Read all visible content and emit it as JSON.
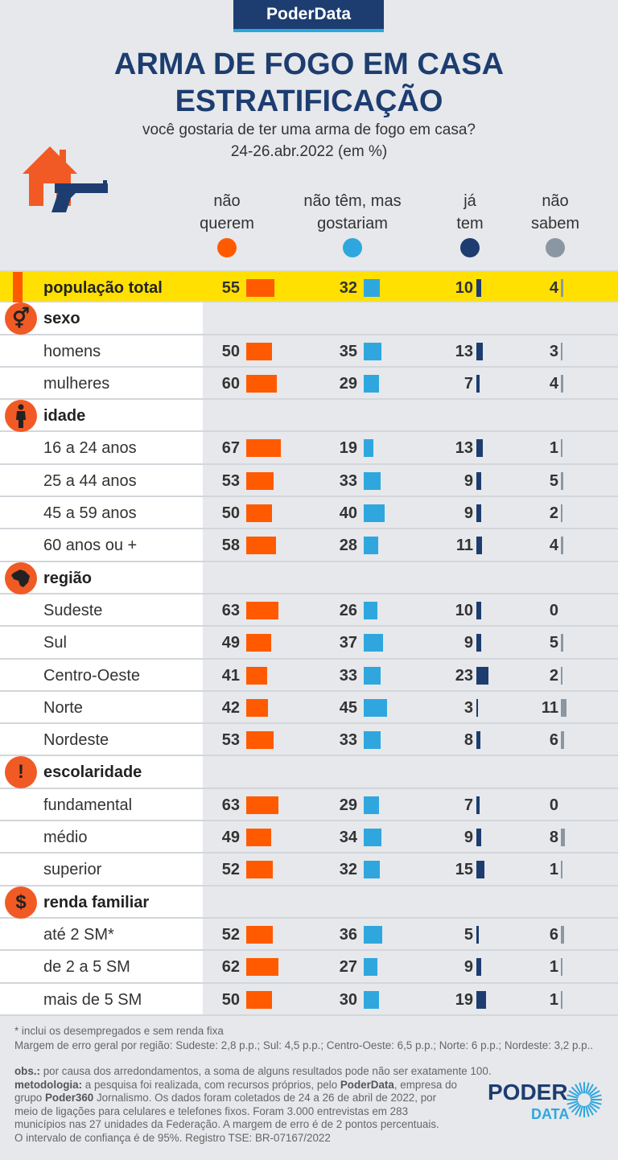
{
  "brand": "PoderData",
  "title_line1": "ARMA DE FOGO EM CASA",
  "title_line2": "ESTRATIFICAÇÃO",
  "subtitle_line1": "você gostaria de ter uma arma de fogo em casa?",
  "subtitle_line2": "24-26.abr.2022 (em %)",
  "colors": {
    "nao_querem": "#ff5a00",
    "gostariam": "#2fa7de",
    "ja_tem": "#1d3d70",
    "nao_sabem": "#8a97a3",
    "highlight": "#ffe000",
    "icon_bg": "#f15a24"
  },
  "chart_data": {
    "type": "bar",
    "series": [
      {
        "key": "nao_querem",
        "label_line1": "não",
        "label_line2": "querem"
      },
      {
        "key": "gostariam",
        "label_line1": "não têm, mas",
        "label_line2": "gostariam"
      },
      {
        "key": "ja_tem",
        "label_line1": "já",
        "label_line2": "tem"
      },
      {
        "key": "nao_sabem",
        "label_line1": "não",
        "label_line2": "sabem"
      }
    ],
    "rows": [
      {
        "kind": "total",
        "label": "população total",
        "values": [
          55,
          32,
          10,
          4
        ]
      },
      {
        "kind": "header",
        "label": "sexo",
        "icon": "gender-icon"
      },
      {
        "kind": "data",
        "label": "homens",
        "values": [
          50,
          35,
          13,
          3
        ]
      },
      {
        "kind": "data",
        "label": "mulheres",
        "values": [
          60,
          29,
          7,
          4
        ]
      },
      {
        "kind": "header",
        "label": "idade",
        "icon": "person-icon"
      },
      {
        "kind": "data",
        "label": "16 a 24 anos",
        "values": [
          67,
          19,
          13,
          1
        ]
      },
      {
        "kind": "data",
        "label": "25 a 44 anos",
        "values": [
          53,
          33,
          9,
          5
        ]
      },
      {
        "kind": "data",
        "label": "45 a 59 anos",
        "values": [
          50,
          40,
          9,
          2
        ]
      },
      {
        "kind": "data",
        "label": "60 anos ou +",
        "values": [
          58,
          28,
          11,
          4
        ]
      },
      {
        "kind": "header",
        "label": "região",
        "icon": "brazil-map-icon"
      },
      {
        "kind": "data",
        "label": "Sudeste",
        "values": [
          63,
          26,
          10,
          0
        ]
      },
      {
        "kind": "data",
        "label": "Sul",
        "values": [
          49,
          37,
          9,
          5
        ]
      },
      {
        "kind": "data",
        "label": "Centro-Oeste",
        "values": [
          41,
          33,
          23,
          2
        ]
      },
      {
        "kind": "data",
        "label": "Norte",
        "values": [
          42,
          45,
          3,
          11
        ]
      },
      {
        "kind": "data",
        "label": "Nordeste",
        "values": [
          53,
          33,
          8,
          6
        ]
      },
      {
        "kind": "header",
        "label": "escolaridade",
        "icon": "exclamation-icon"
      },
      {
        "kind": "data",
        "label": "fundamental",
        "values": [
          63,
          29,
          7,
          0
        ]
      },
      {
        "kind": "data",
        "label": "médio",
        "values": [
          49,
          34,
          9,
          8
        ]
      },
      {
        "kind": "data",
        "label": "superior",
        "values": [
          52,
          32,
          15,
          1
        ]
      },
      {
        "kind": "header",
        "label": "renda familiar",
        "icon": "dollar-icon"
      },
      {
        "kind": "data",
        "label": "até 2 SM*",
        "values": [
          52,
          36,
          5,
          6
        ]
      },
      {
        "kind": "data",
        "label": "de 2 a 5 SM",
        "values": [
          62,
          27,
          9,
          1
        ]
      },
      {
        "kind": "data",
        "label": "mais de 5 SM",
        "values": [
          50,
          30,
          19,
          1
        ]
      }
    ]
  },
  "footnotes": {
    "note1": "* inclui os desempregados e sem renda fixa",
    "note2": "Margem de erro geral por região: Sudeste: 2,8 p.p.; Sul: 4,5 p.p.; Centro-Oeste: 6,5 p.p.; Norte: 6 p.p.; Nordeste: 3,2 p.p..",
    "obs_label": "obs.:",
    "obs_text": " por causa dos arredondamentos, a soma de alguns resultados pode não ser exatamente 100.",
    "met_label": "metodologia:",
    "met_text1": " a pesquisa foi realizada, com recursos próprios, pelo ",
    "met_brand1": "PoderData",
    "met_text2": ", empresa do",
    "met_text3": "grupo ",
    "met_brand2": "Poder360",
    "met_text4": " Jornalismo. Os dados foram coletados de 24 a 26 de abril de 2022, por",
    "met_line3": "meio de ligações para celulares e telefones fixos. Foram 3.000 entrevistas em 283",
    "met_line4": "municípios nas 27 unidades da Federação. A margem de erro é de 2 pontos percentuais.",
    "met_line5": "O intervalo de confiança é de 95%. Registro TSE: BR-07167/2022"
  },
  "logo": {
    "line1": "PODER",
    "line2": "DATA"
  }
}
